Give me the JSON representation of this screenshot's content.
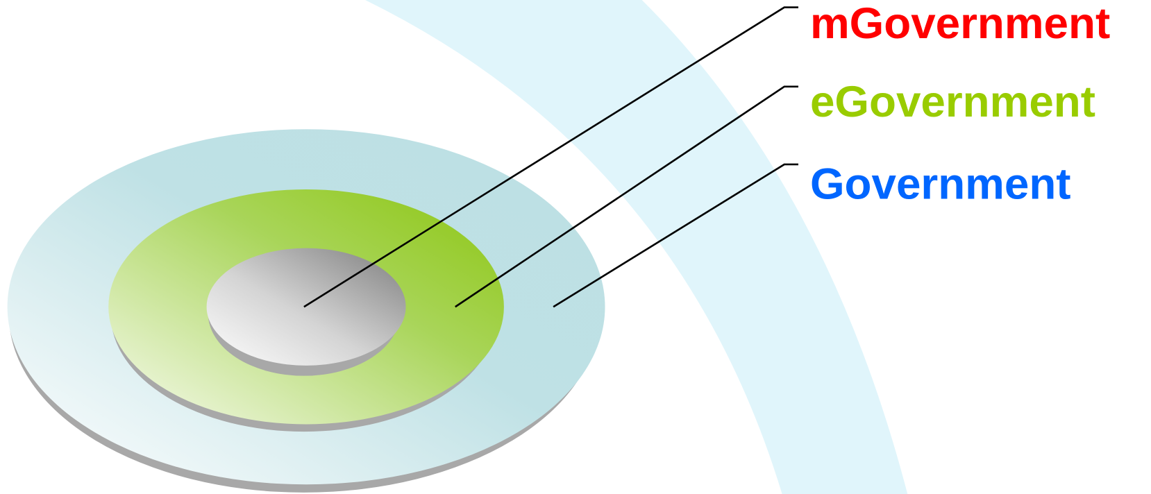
{
  "labels": [
    "mGovernment",
    "eGovernment",
    "Government"
  ]
}
